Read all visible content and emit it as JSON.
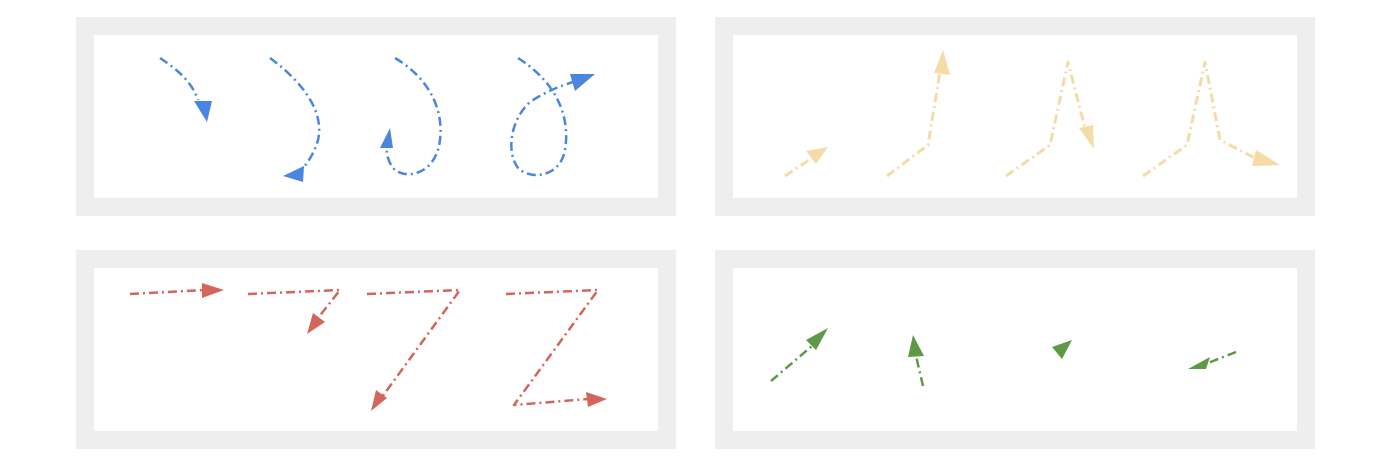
{
  "colors": {
    "panel_frame": "#eeeeee",
    "panel_inner": "#ffffff",
    "blue": "#4a86e0",
    "yellow": "#f5dba6",
    "red": "#d4655b",
    "green": "#5e9a45"
  },
  "panels": [
    {
      "name": "panel-blue-curves",
      "color": "blue",
      "arrow_count": 4
    },
    {
      "name": "panel-yellow-peaks",
      "color": "yellow",
      "arrow_count": 4
    },
    {
      "name": "panel-red-zigzags",
      "color": "red",
      "arrow_count": 4
    },
    {
      "name": "panel-green-short-arrows",
      "color": "green",
      "arrow_count": 4
    }
  ]
}
